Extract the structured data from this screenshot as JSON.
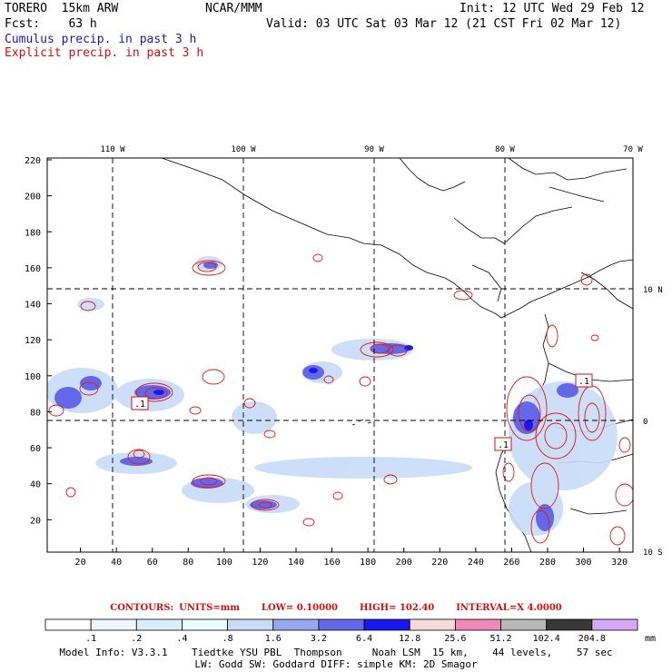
{
  "header": {
    "model": "TORERO  15km ARW",
    "org": "NCAR/MMM",
    "init": "Init: 12 UTC Wed 29 Feb 12",
    "fcst": "Fcst:    63 h",
    "valid": "Valid: 03 UTC Sat 03 Mar 12 (21 CST Fri 02 Mar 12)",
    "cumulus": "Cumulus precip. in past 3 h",
    "explicit": "Explicit precip. in past 3 h"
  },
  "map": {
    "top_lon_labels": [
      "110 W",
      "100 W",
      "90 W",
      "80 W",
      "70 W"
    ],
    "right_lat_labels": [
      "10 N",
      "0",
      "10 S"
    ],
    "x_ticks": [
      "20",
      "40",
      "60",
      "80",
      "100",
      "120",
      "140",
      "160",
      "180",
      "200",
      "220",
      "240",
      "260",
      "280",
      "300",
      "320"
    ],
    "y_ticks": [
      "20",
      "40",
      "60",
      "80",
      "100",
      "120",
      "140",
      "160",
      "180",
      "200",
      "220"
    ],
    "box_labels": [
      ".1",
      ".1",
      ".1"
    ]
  },
  "contours": {
    "title": "CONTOURS:",
    "units": "UNITS=mm",
    "low": "LOW= 0.10000",
    "high": "HIGH=  102.40",
    "interval": "INTERVAL=X  4.0000"
  },
  "colorbar": {
    "labels": [
      ".1",
      ".2",
      ".4",
      ".8",
      "1.6",
      "3.2",
      "6.4",
      "12.8",
      "25.6",
      "51.2",
      "102.4",
      "204.8"
    ],
    "unit": "mm",
    "colors": [
      "#ffffff",
      "#eef6ff",
      "#d8eefc",
      "#e8fcfc",
      "#c8dcf8",
      "#98a8f0",
      "#6468e8",
      "#1818f0",
      "#f8d8d8",
      "#f088b8",
      "#b8b8b8",
      "#383838",
      "#d8a8f8"
    ]
  },
  "footer": {
    "line1": "Model Info: V3.3.1    Tiedtke YSU PBL  Thompson     Noah LSM  15 km,    44 levels,    57 sec",
    "line2": "LW: Godd SW: Goddard DIFF: simple KM: 2D Smagor"
  }
}
